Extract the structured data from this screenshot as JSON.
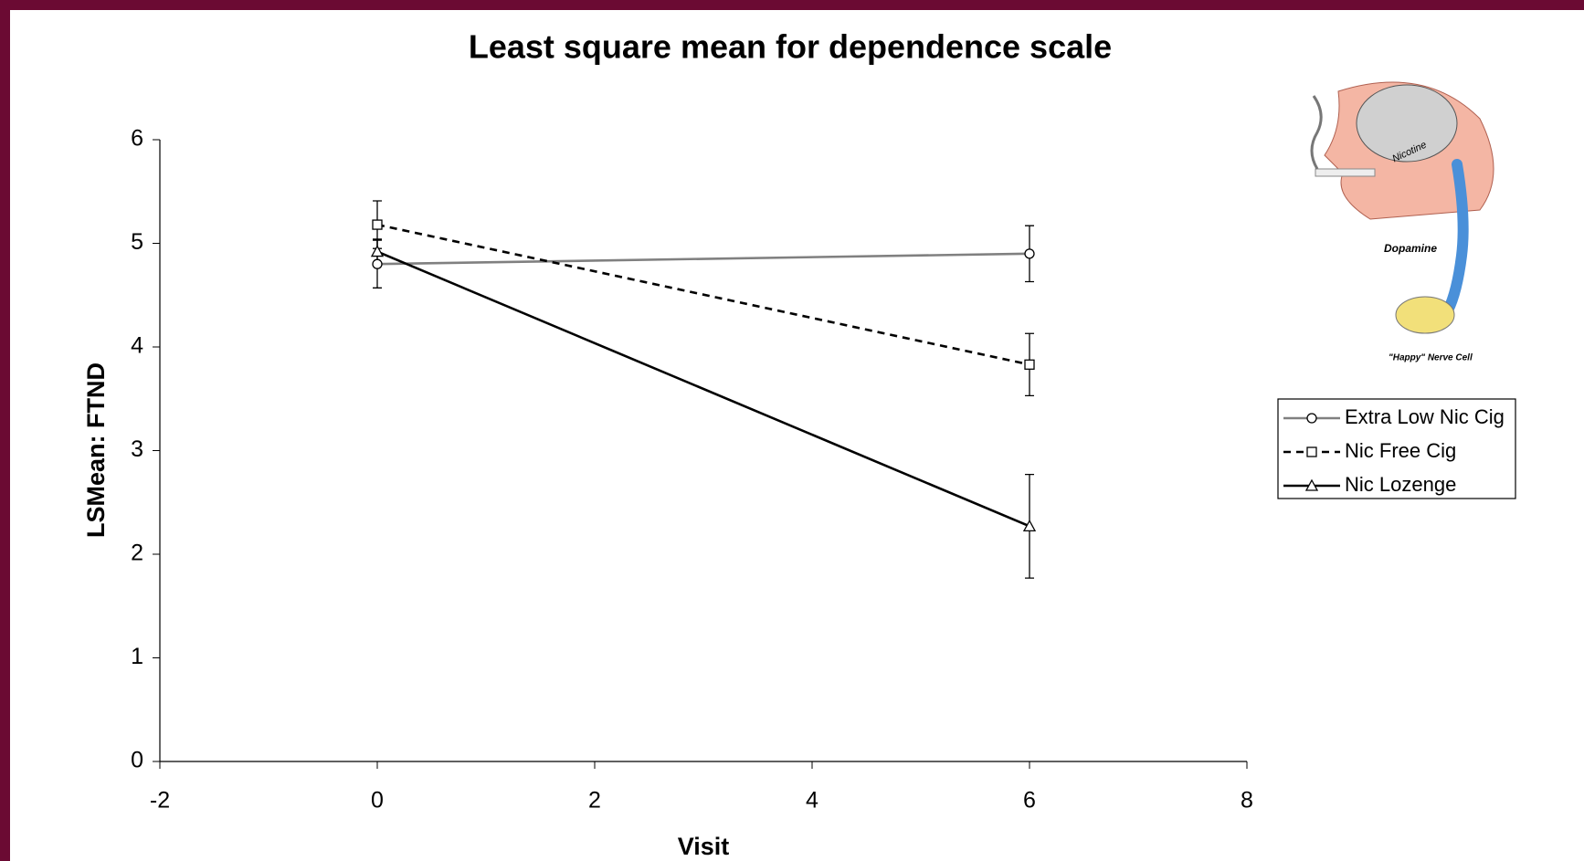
{
  "chart_data": {
    "type": "line",
    "title": "Least square mean for dependence scale",
    "x_label": "Visit",
    "y_label": "LSMean: FTND",
    "x": [
      0,
      6
    ],
    "xlim": [
      -2,
      8
    ],
    "xticks": [
      -2,
      0,
      2,
      4,
      6,
      8
    ],
    "ylim": [
      0,
      6
    ],
    "yticks": [
      0,
      1,
      2,
      3,
      4,
      5,
      6
    ],
    "grid": false,
    "legend": "right",
    "series": [
      {
        "name": "Extra Low Nic Cig",
        "color": "#808080",
        "dash": "solid",
        "marker": "circle",
        "values": [
          4.8,
          4.9
        ],
        "errors": [
          0.23,
          0.27
        ]
      },
      {
        "name": "Nic Free Cig",
        "color": "#000000",
        "dash": "dashed",
        "marker": "square",
        "values": [
          5.18,
          3.83
        ],
        "errors": [
          0.23,
          0.3
        ]
      },
      {
        "name": "Nic Lozenge",
        "color": "#000000",
        "dash": "solid",
        "marker": "triangle",
        "values": [
          4.92,
          2.27
        ],
        "errors": [
          0.12,
          0.5
        ]
      }
    ]
  },
  "illustration": {
    "labels": [
      "Nicotine",
      "Dopamine",
      "\"Happy\" Nerve Cell"
    ]
  }
}
